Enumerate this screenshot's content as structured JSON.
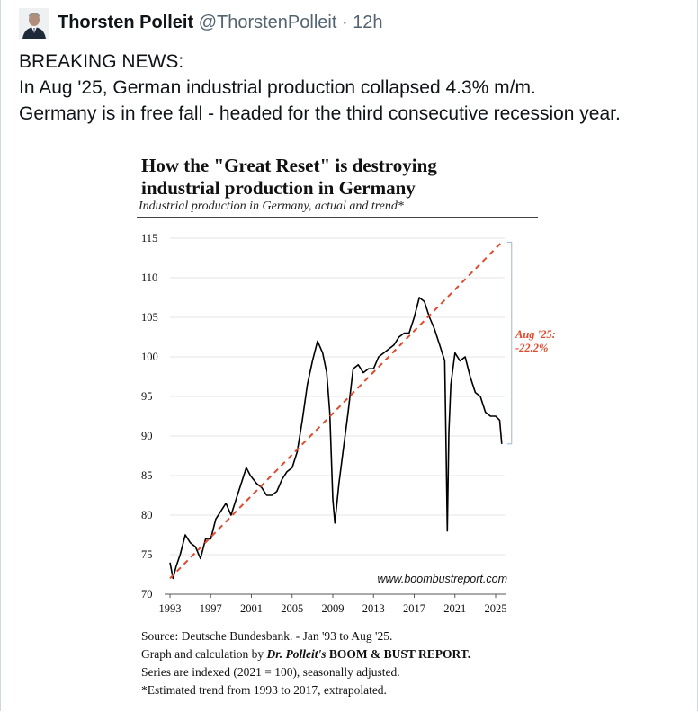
{
  "tweet": {
    "author_name": "Thorsten Polleit",
    "handle": "@ThorstenPolleit",
    "separator": "·",
    "time": "12h",
    "lines": [
      "BREAKING NEWS:",
      "In Aug '25, German industrial production collapsed 4.3% m/m.",
      "Germany is in free fall - headed for the third consecutive recession year."
    ]
  },
  "figure": {
    "title_line1": "How the \"Great Reset\" is destroying",
    "title_line2": "industrial production in Germany",
    "subtitle": "Industrial production in Germany, actual and trend*",
    "watermark": "www.boombustreport.com",
    "annotation_line1": "Aug '25:",
    "annotation_line2": "-22.2%",
    "note_source": "Source: Deutsche Bundesbank. - Jan '93 to Aug '25.",
    "note_graph_prefix": "Graph and calculation by ",
    "note_graph_author": "Dr. Polleit's",
    "note_graph_report": " BOOM & BUST REPORT.",
    "note_index": "Series are indexed (2021 = 100), seasonally adjusted.",
    "note_trend": "*Estimated trend from 1993 to 2017, extrapolated."
  },
  "chart_data": {
    "type": "line",
    "title": "How the \"Great Reset\" is destroying industrial production in Germany",
    "subtitle": "Industrial production in Germany, actual and trend*",
    "xlim": [
      1993,
      2025.7
    ],
    "ylim": [
      70,
      115
    ],
    "x_ticks": [
      1993,
      1997,
      2001,
      2005,
      2009,
      2013,
      2017,
      2021,
      2025
    ],
    "y_ticks": [
      70,
      75,
      80,
      85,
      90,
      95,
      100,
      105,
      110,
      115
    ],
    "grid": true,
    "series": [
      {
        "name": "",
        "style": "solid",
        "color": "#000000",
        "x": [
          1993.0,
          1993.3,
          1993.6,
          1994.0,
          1994.5,
          1995.0,
          1995.5,
          1996.0,
          1996.5,
          1997.0,
          1997.5,
          1998.0,
          1998.5,
          1999.0,
          1999.5,
          2000.0,
          2000.5,
          2000.9,
          2001.5,
          2002.0,
          2002.5,
          2003.0,
          2003.5,
          2004.0,
          2004.5,
          2005.0,
          2005.5,
          2006.0,
          2006.5,
          2007.0,
          2007.5,
          2008.0,
          2008.4,
          2008.7,
          2009.0,
          2009.2,
          2009.6,
          2010.0,
          2010.5,
          2011.0,
          2011.5,
          2012.0,
          2012.5,
          2013.0,
          2013.5,
          2014.0,
          2014.5,
          2015.0,
          2015.5,
          2016.0,
          2016.5,
          2017.0,
          2017.5,
          2018.0,
          2018.5,
          2019.0,
          2019.5,
          2020.0,
          2020.1,
          2020.25,
          2020.4,
          2020.6,
          2021.0,
          2021.5,
          2022.0,
          2022.5,
          2023.0,
          2023.5,
          2024.0,
          2024.5,
          2025.0,
          2025.4,
          2025.6
        ],
        "y": [
          74.0,
          72.0,
          73.5,
          75.0,
          77.5,
          76.5,
          76.0,
          74.5,
          77.0,
          77.0,
          79.5,
          80.5,
          81.5,
          80.0,
          82.0,
          84.0,
          86.0,
          85.0,
          84.0,
          83.5,
          82.5,
          82.5,
          83.0,
          84.5,
          85.5,
          86.0,
          88.0,
          92.0,
          96.5,
          99.5,
          102.0,
          100.5,
          98.0,
          93.0,
          82.0,
          79.0,
          84.0,
          88.0,
          93.0,
          98.5,
          99.0,
          98.0,
          98.5,
          98.5,
          100.0,
          100.5,
          101.0,
          101.5,
          102.5,
          103.0,
          103.0,
          105.0,
          107.5,
          107.0,
          105.0,
          103.5,
          101.5,
          99.5,
          91.0,
          78.0,
          90.5,
          96.5,
          100.5,
          99.5,
          100.0,
          97.5,
          95.5,
          95.0,
          93.0,
          92.5,
          92.5,
          92.0,
          89.0
        ]
      },
      {
        "name": "",
        "style": "dashed",
        "color": "#e04a2e",
        "x": [
          1993,
          2025.6
        ],
        "y": [
          72.0,
          114.5
        ]
      }
    ],
    "annotation": {
      "text": "Aug '25: -22.2%",
      "x": 2025.6,
      "y_from": 89.0,
      "y_to": 114.5
    }
  }
}
